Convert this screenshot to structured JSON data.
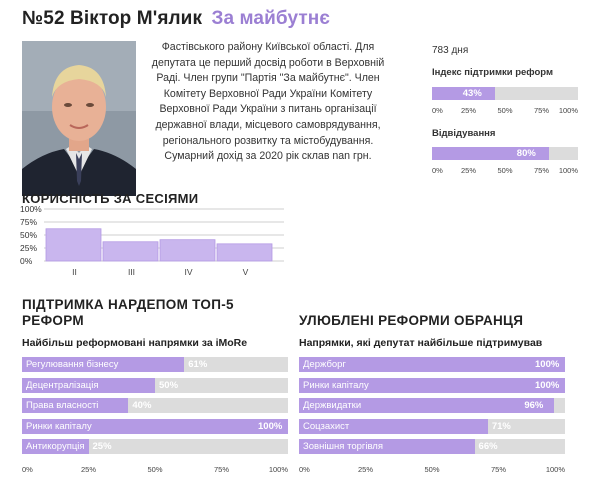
{
  "header": {
    "number": "№52",
    "name": "Віктор М'ялик",
    "party": "За майбутнє"
  },
  "bio": "Фастівського району Київської області. Для депутата це перший досвід роботи в Верховній Раді. Член групи \"Партія \"За майбутнє\". Член Комітету Верховної Ради України Комітету Верховної Ради України з питань організації державної влади, місцевого самоврядування, регіонального розвитку та містобудування. Сумарний дохід за 2020 рік склав nan грн.",
  "stats": {
    "days": "783 дня",
    "support_index": {
      "label": "Індекс підтримки реформ",
      "value": 43,
      "text": "43%"
    },
    "attendance": {
      "label": "Відвідування",
      "value": 80,
      "text": "80%"
    },
    "tick_labels": [
      "0%",
      "25%",
      "50%",
      "75%",
      "100%"
    ]
  },
  "sessions": {
    "title": "КОРИСНІСТЬ ЗА СЕСІЯМИ"
  },
  "top5": {
    "title": "ПІДТРИМКА НАРДЕПОМ ТОП-5 РЕФОРМ",
    "subtitle": "Найбільш реформовані напрямки за iMoRe",
    "tick_labels": [
      "0%",
      "25%",
      "50%",
      "75%",
      "100%"
    ],
    "items": [
      {
        "name": "Регулювання бізнесу",
        "value": 61,
        "text": "61%"
      },
      {
        "name": "Децентралізація",
        "value": 50,
        "text": "50%"
      },
      {
        "name": "Права власності",
        "value": 40,
        "text": "40%"
      },
      {
        "name": "Ринки капіталу",
        "value": 100,
        "text": "100%"
      },
      {
        "name": "Антикорупція",
        "value": 25,
        "text": "25%"
      }
    ]
  },
  "favorites": {
    "title": "УЛЮБЛЕНІ РЕФОРМИ ОБРАНЦЯ",
    "subtitle": "Напрямки, які депутат найбільше підтримував",
    "tick_labels": [
      "0%",
      "25%",
      "50%",
      "75%",
      "100%"
    ],
    "items": [
      {
        "name": "Держборг",
        "value": 100,
        "text": "100%"
      },
      {
        "name": "Ринки капіталу",
        "value": 100,
        "text": "100%"
      },
      {
        "name": "Держвидатки",
        "value": 96,
        "text": "96%"
      },
      {
        "name": "Соцзахист",
        "value": 71,
        "text": "71%"
      },
      {
        "name": "Зовнішня торгівля",
        "value": 66,
        "text": "66%"
      }
    ]
  },
  "colors": {
    "accent": "#b49ae4",
    "party": "#9b7fd3",
    "track": "#dcdcdc"
  },
  "chart_data": {
    "type": "bar",
    "title": "КОРИСНІСТЬ ЗА СЕСІЯМИ",
    "categories": [
      "II",
      "III",
      "IV",
      "V"
    ],
    "values": [
      62,
      37,
      41,
      33
    ],
    "yticks": [
      "100%",
      "75%",
      "50%",
      "25%",
      "0%"
    ],
    "ylim": [
      0,
      100
    ],
    "grid": true
  }
}
